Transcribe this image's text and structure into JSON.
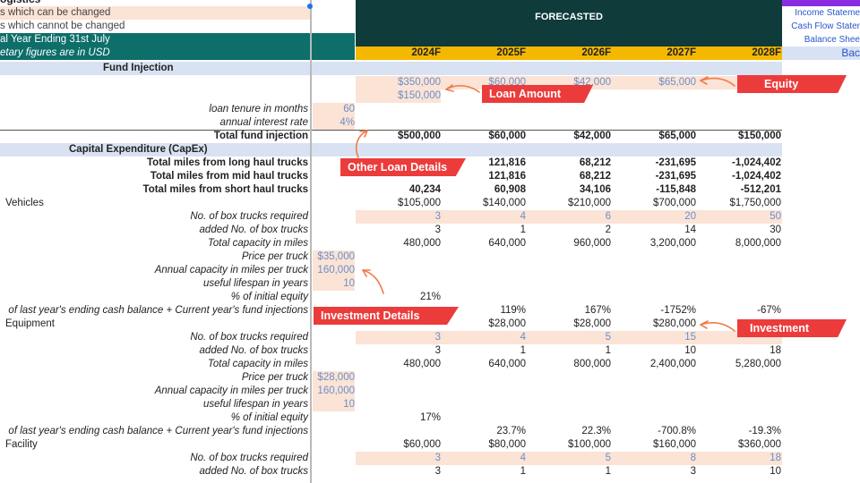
{
  "legend": {
    "title_partial": "ogistics",
    "changeable": "s which can be changed",
    "unchangeable": "s which cannot be changed",
    "fiscal": "al Year Ending 31st July",
    "currency": "etary figures are in USD"
  },
  "header": {
    "forecasted": "FORECASTED",
    "years": [
      "2024F",
      "2025F",
      "2026F",
      "2027F",
      "2028F"
    ]
  },
  "nav": {
    "items": [
      "Income Stateme",
      "Cash Flow Stater",
      "Balance Shee"
    ],
    "back": "Bac"
  },
  "sections": {
    "fund_injection": "Fund Injection",
    "capex": "Capital Expenditure (CapEx)"
  },
  "fund": {
    "equity_values": [
      "$350,000",
      "$60,000",
      "$42,000",
      "$65,000",
      ""
    ],
    "loan_value": "$150,000",
    "loan_tenure_label": "loan tenure in months",
    "loan_tenure": "60",
    "interest_label": "annual interest rate",
    "interest": "4%",
    "total_label": "Total fund injection",
    "total_values": [
      "$500,000",
      "$60,000",
      "$42,000",
      "$65,000",
      "$150,000"
    ]
  },
  "miles": [
    {
      "label": "Total miles from long haul trucks",
      "values": [
        "",
        "121,816",
        "68,212",
        "-231,695",
        "-1,024,402"
      ]
    },
    {
      "label": "Total miles from mid haul trucks",
      "values": [
        "",
        "121,816",
        "68,212",
        "-231,695",
        "-1,024,402"
      ]
    },
    {
      "label": "Total miles from short haul trucks",
      "values": [
        "40,234",
        "60,908",
        "34,106",
        "-115,848",
        "-512,201"
      ]
    }
  ],
  "vehicles": {
    "label": "Vehicles",
    "values": [
      "$105,000",
      "$140,000",
      "$210,000",
      "$700,000",
      "$1,750,000"
    ],
    "required_label": "No. of box trucks required",
    "required": [
      "3",
      "4",
      "6",
      "20",
      "50"
    ],
    "added_label": "added No. of box trucks",
    "added": [
      "3",
      "1",
      "2",
      "14",
      "30"
    ],
    "capacity_label": "Total capacity in miles",
    "capacity": [
      "480,000",
      "640,000",
      "960,000",
      "3,200,000",
      "8,000,000"
    ],
    "price_label": "Price per truck",
    "price": "$35,000",
    "annual_label": "Annual capacity in miles per truck",
    "annual": "160,000",
    "life_label": "useful lifespan in years",
    "life": "10",
    "equity_pct_label": "% of initial equity",
    "equity_pct": "21%",
    "cash_label": "of last year's ending cash balance + Current year's fund injections",
    "cash_pct": [
      "",
      "119%",
      "167%",
      "-1752%",
      "-67%"
    ]
  },
  "equipment": {
    "label": "Equipment",
    "values": [
      "",
      "$28,000",
      "$28,000",
      "$280,000",
      ""
    ],
    "required_label": "No. of box trucks required",
    "required": [
      "3",
      "4",
      "5",
      "15",
      ""
    ],
    "added_label": "added No. of box trucks",
    "added": [
      "3",
      "1",
      "1",
      "10",
      "18"
    ],
    "capacity_label": "Total capacity in miles",
    "capacity": [
      "480,000",
      "640,000",
      "800,000",
      "2,400,000",
      "5,280,000"
    ],
    "price_label": "Price per truck",
    "price": "$28,000",
    "annual_label": "Annual capacity in miles per truck",
    "annual": "160,000",
    "life_label": "useful lifespan in years",
    "life": "10",
    "equity_pct_label": "% of initial equity",
    "equity_pct": "17%",
    "cash_label": "of last year's ending cash balance + Current year's fund injections",
    "cash_pct": [
      "",
      "23.7%",
      "22.3%",
      "-700.8%",
      "-19.3%"
    ]
  },
  "facility": {
    "label": "Facility",
    "values": [
      "$60,000",
      "$80,000",
      "$100,000",
      "$160,000",
      "$360,000"
    ],
    "required_label": "No. of box trucks required",
    "required": [
      "3",
      "4",
      "5",
      "8",
      "18"
    ],
    "added_label": "added No. of box trucks",
    "added": [
      "3",
      "1",
      "1",
      "3",
      "10"
    ]
  },
  "callouts": {
    "loan_amount": "Loan Amount",
    "equity": "Equity",
    "other_loan": "Other Loan Details",
    "investment_details": "Investment Details",
    "investment": "Investment"
  },
  "colors": {
    "header_teal": "#0f3b3b",
    "year_yellow": "#f5b800",
    "input_peach": "#fbe3d6",
    "callout_red": "#ec3b3b",
    "section_blue": "#d9e2f3",
    "legend_teal": "#0d6e6a",
    "nav_purple": "#8a2be2"
  }
}
